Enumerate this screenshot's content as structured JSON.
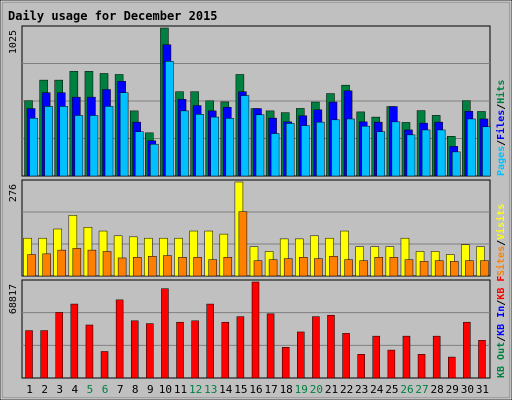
{
  "chart_data": {
    "type": "bar",
    "title": "Daily usage for December 2015",
    "days": [
      1,
      2,
      3,
      4,
      5,
      6,
      7,
      8,
      9,
      10,
      11,
      12,
      13,
      14,
      15,
      16,
      17,
      18,
      19,
      20,
      21,
      22,
      23,
      24,
      25,
      26,
      27,
      28,
      29,
      30,
      31
    ],
    "weekend_days": [
      5,
      6,
      12,
      13,
      19,
      20,
      26,
      27
    ],
    "colors": {
      "hits": "#008040",
      "files": "#0000ff",
      "pages": "#00c0ff",
      "visits": "#ffff00",
      "sites": "#ff8000",
      "kbin": "#ff0000",
      "kbout": "#00ff00",
      "weekend_label": "#008040",
      "weekday_label": "#000000",
      "title": "#0000ff",
      "panel_bg": "#c0c0c0",
      "frame": "#c0c0c0"
    },
    "panels": [
      {
        "id": "top",
        "max_label": "1025",
        "legend": [
          {
            "text": "Hits",
            "color": "#008040"
          },
          {
            "text": "/",
            "color": "#000000"
          },
          {
            "text": "Files",
            "color": "#0000ff"
          },
          {
            "text": "/",
            "color": "#000000"
          },
          {
            "text": "Pages",
            "color": "#00c0ff"
          }
        ],
        "ymax": 1025,
        "series": [
          {
            "name": "Hits",
            "color": "#008040",
            "values": [
              522,
              664,
              664,
              725,
              725,
              710,
              703,
              451,
              299,
              1025,
              584,
              584,
              521,
              513,
              703,
              467,
              451,
              439,
              468,
              512,
              571,
              629,
              444,
              408,
              481,
              371,
              453,
              420,
              275,
              522,
              447
            ]
          },
          {
            "name": "Files",
            "color": "#0000ff",
            "values": [
              467,
              577,
              577,
              546,
              546,
              599,
              656,
              373,
              244,
              909,
              531,
              488,
              451,
              476,
              584,
              467,
              401,
              375,
              417,
              459,
              512,
              590,
              375,
              373,
              481,
              319,
              366,
              373,
              205,
              448,
              395
            ]
          },
          {
            "name": "Pages",
            "color": "#00c0ff",
            "values": [
              400,
              482,
              482,
              419,
              419,
              482,
              577,
              307,
              220,
              794,
              451,
              427,
              408,
              399,
              557,
              424,
              294,
              364,
              349,
              373,
              389,
              395,
              345,
              307,
              375,
              285,
              319,
              319,
              167,
              395,
              341
            ]
          }
        ]
      },
      {
        "id": "middle",
        "max_label": "276",
        "legend": [
          {
            "text": "Visits",
            "color": "#ffff00"
          },
          {
            "text": "/",
            "color": "#000000"
          },
          {
            "text": "Sites",
            "color": "#ff8000"
          }
        ],
        "ymax": 276,
        "series": [
          {
            "name": "Visits",
            "color": "#ffff00",
            "values": [
              111,
              111,
              138,
              178,
              143,
              132,
              118,
              115,
              111,
              111,
              111,
              132,
              132,
              123,
              276,
              86,
              72,
              109,
              109,
              118,
              111,
              132,
              86,
              86,
              86,
              111,
              72,
              72,
              63,
              92,
              86
            ]
          },
          {
            "name": "Sites",
            "color": "#ff8000",
            "values": [
              63,
              65,
              76,
              81,
              76,
              72,
              53,
              55,
              58,
              60,
              55,
              55,
              48,
              55,
              189,
              45,
              48,
              51,
              55,
              51,
              58,
              48,
              45,
              55,
              55,
              48,
              43,
              45,
              43,
              45,
              45
            ]
          }
        ]
      },
      {
        "id": "bottom",
        "max_label": "68817",
        "legend": [
          {
            "text": "KB F",
            "color": "#ff0000"
          },
          {
            "text": "/",
            "color": "#000000"
          },
          {
            "text": "KB In",
            "color": "#0000ff"
          },
          {
            "text": "/",
            "color": "#000000"
          },
          {
            "text": "KB Out",
            "color": "#008040"
          }
        ],
        "ymax": 68817,
        "series": [
          {
            "name": "KB F",
            "color": "#ff0000",
            "values": [
              34000,
              34000,
              47000,
              53000,
              38000,
              19000,
              56000,
              41000,
              39000,
              64000,
              40000,
              41000,
              53000,
              40000,
              44000,
              68817,
              46000,
              22000,
              33000,
              44000,
              45000,
              32000,
              17000,
              30000,
              20000,
              30000,
              17000,
              30000,
              15000,
              40000,
              27000
            ]
          }
        ]
      }
    ]
  }
}
